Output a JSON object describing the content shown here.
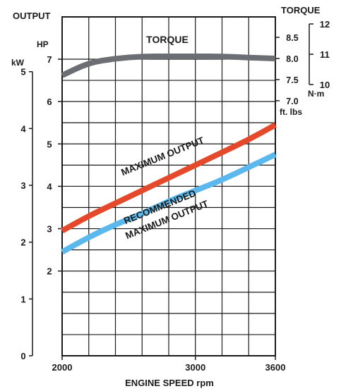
{
  "chart_data": {
    "type": "line",
    "left_axis_title": "OUTPUT",
    "hp_label": "HP",
    "kw_label": "kW",
    "right_axis_title": "TORQUE",
    "nm_label": "N·m",
    "ftlb_label": "ft. lbs",
    "xlabel": "ENGINE SPEED rpm",
    "x_ticks": [
      "2000",
      "3000",
      "3600"
    ],
    "xlim": [
      2000,
      3600
    ],
    "hp_ticks": [
      "2",
      "3",
      "4",
      "5",
      "6",
      "7"
    ],
    "hp_lim": [
      0,
      7.2
    ],
    "kw_ticks": [
      "0",
      "1",
      "2",
      "3",
      "4",
      "5"
    ],
    "ftlb_ticks": [
      "7.0",
      "7.5",
      "8.0",
      "8.5"
    ],
    "ftlb_lim": [
      6.9,
      9.3
    ],
    "nm_ticks": [
      "10",
      "11",
      "12"
    ],
    "grid": true,
    "colors": {
      "torque": "#6b6e72",
      "maximum": "#e5492c",
      "recommended": "#5bb8ec",
      "grid": "#1a1a1a"
    },
    "series": [
      {
        "name": "TORQUE",
        "axis": "ftlb",
        "x": [
          2000,
          2200,
          2400,
          2600,
          2800,
          3000,
          3200,
          3400,
          3600
        ],
        "y": [
          7.6,
          7.9,
          8.0,
          8.05,
          8.05,
          8.05,
          8.05,
          8.02,
          8.0
        ]
      },
      {
        "name": "MAXIMUM OUTPUT",
        "axis": "hp",
        "x": [
          2000,
          2200,
          2400,
          2600,
          2800,
          3000,
          3200,
          3400,
          3600
        ],
        "y": [
          2.95,
          3.3,
          3.6,
          3.9,
          4.2,
          4.5,
          4.8,
          5.1,
          5.45
        ]
      },
      {
        "name": "RECOMMENDED MAXIMUM OUTPUT",
        "axis": "hp",
        "x": [
          2000,
          2200,
          2400,
          2600,
          2800,
          3000,
          3200,
          3400,
          3600
        ],
        "y": [
          2.45,
          2.8,
          3.1,
          3.35,
          3.65,
          3.9,
          4.15,
          4.45,
          4.75
        ]
      }
    ],
    "curve_labels": {
      "torque": "TORQUE",
      "maximum": "MAXIMUM OUTPUT",
      "recommended_1": "RECOMMENDED",
      "recommended_2": "MAXIMUM OUTPUT"
    }
  }
}
